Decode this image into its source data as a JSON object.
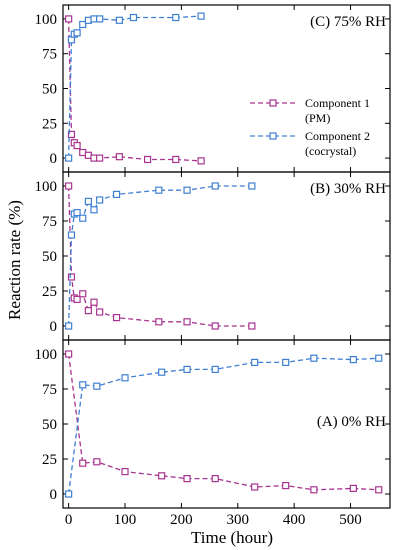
{
  "chart_data": {
    "type": "line",
    "xlabel": "Time (hour)",
    "ylabel": "Reaction rate (%)",
    "x_ticks": [
      0,
      100,
      200,
      300,
      400,
      500
    ],
    "y_ticks": [
      0,
      25,
      50,
      75,
      100
    ],
    "legend": {
      "placement": "right, top panel",
      "entries": [
        {
          "line1": "Component 1",
          "line2": "(PM)",
          "color": "#a8348f"
        },
        {
          "line1": "Component 2",
          "line2": "(cocrystal)",
          "color": "#3f7fd3"
        }
      ]
    },
    "panels": [
      {
        "label": "(C) 75% RH",
        "xlim": [
          -10,
          570
        ],
        "ylim": [
          -10,
          110
        ],
        "series": [
          {
            "color": "#a8348f",
            "x": [
              0,
              5,
              10,
              15,
              25,
              35,
              45,
              55,
              90,
              140,
              190,
              235
            ],
            "y": [
              100,
              17,
              11,
              9,
              4,
              2,
              0,
              0,
              1,
              -1,
              -1,
              -2
            ]
          },
          {
            "color": "#3f7fd3",
            "x": [
              0,
              5,
              10,
              15,
              25,
              35,
              45,
              55,
              90,
              115,
              190,
              235
            ],
            "y": [
              0,
              85,
              89,
              90,
              96,
              99,
              100,
              100,
              99,
              101,
              101,
              102
            ]
          }
        ]
      },
      {
        "label": "(B) 30% RH",
        "xlim": [
          -10,
          570
        ],
        "ylim": [
          -10,
          110
        ],
        "series": [
          {
            "color": "#a8348f",
            "x": [
              0,
              5,
              10,
              15,
              25,
              35,
              45,
              55,
              85,
              160,
              210,
              260,
              325
            ],
            "y": [
              100,
              35,
              20,
              19,
              23,
              11,
              17,
              10,
              6,
              3,
              3,
              0,
              0
            ]
          },
          {
            "color": "#3f7fd3",
            "x": [
              0,
              5,
              10,
              15,
              25,
              35,
              45,
              55,
              85,
              160,
              210,
              260,
              325
            ],
            "y": [
              0,
              65,
              80,
              81,
              77,
              89,
              83,
              90,
              94,
              97,
              97,
              100,
              100
            ]
          }
        ]
      },
      {
        "label": "(A) 0% RH",
        "xlim": [
          -10,
          570
        ],
        "ylim": [
          -10,
          110
        ],
        "series": [
          {
            "color": "#a8348f",
            "x": [
              0,
              25,
              50,
              100,
              165,
              210,
              260,
              330,
              385,
              435,
              505,
              550
            ],
            "y": [
              100,
              22,
              23,
              16,
              13,
              11,
              11,
              5,
              6,
              3,
              4,
              3
            ]
          },
          {
            "color": "#3f7fd3",
            "x": [
              0,
              25,
              50,
              100,
              165,
              210,
              260,
              330,
              385,
              435,
              505,
              550
            ],
            "y": [
              0,
              78,
              77,
              83,
              87,
              89,
              89,
              94,
              94,
              97,
              96,
              97
            ]
          }
        ]
      }
    ]
  }
}
